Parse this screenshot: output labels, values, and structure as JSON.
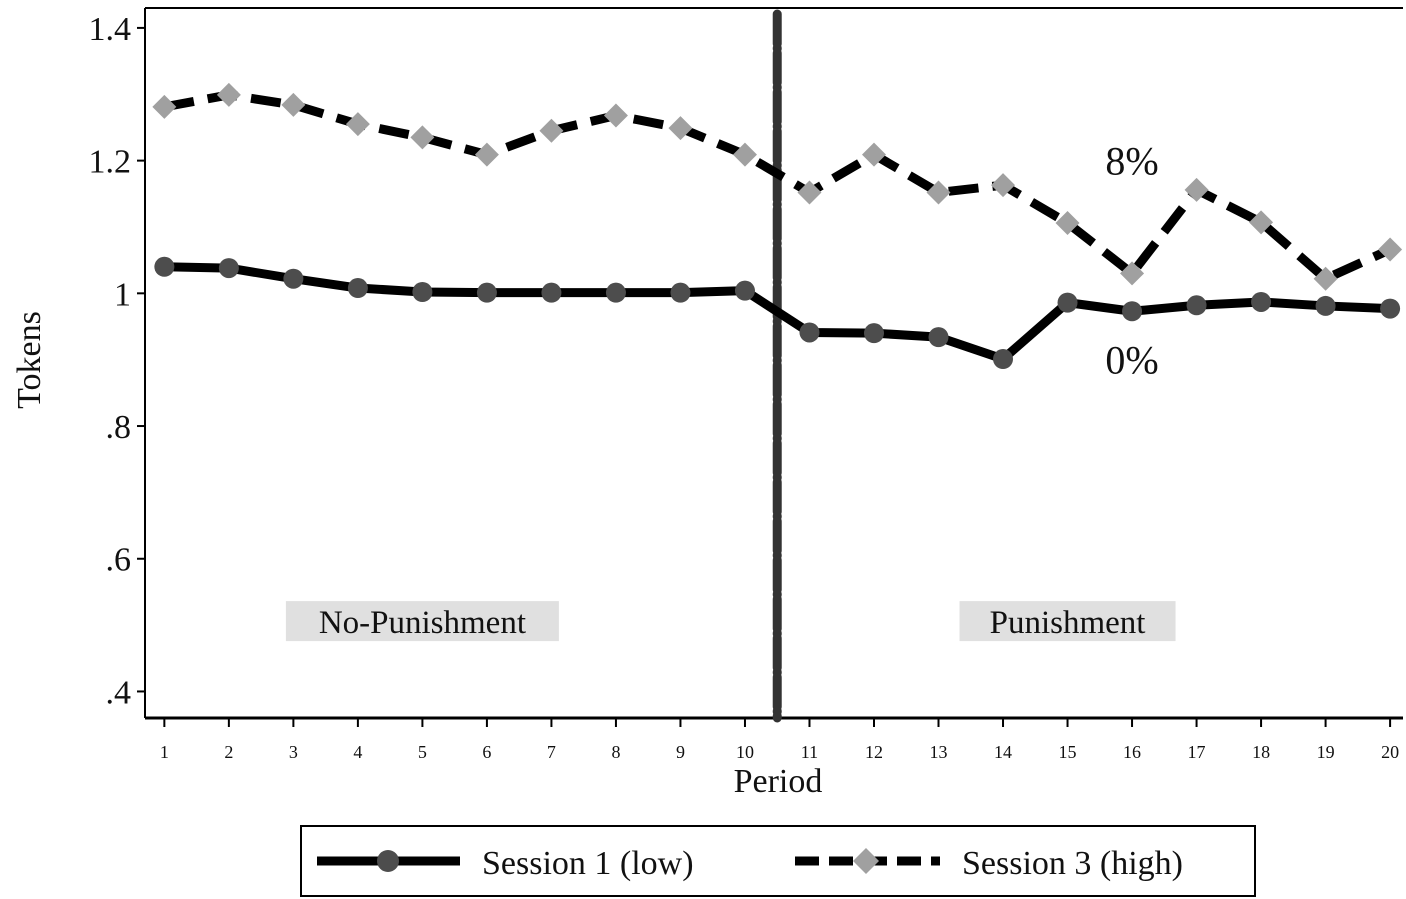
{
  "chart_data": {
    "type": "line",
    "title": "",
    "xlabel": "Period",
    "ylabel": "Tokens",
    "x": [
      1,
      2,
      3,
      4,
      5,
      6,
      7,
      8,
      9,
      10,
      11,
      12,
      13,
      14,
      15,
      16,
      17,
      18,
      19,
      20
    ],
    "x_tick_labels": [
      "1",
      "2",
      "3",
      "4",
      "5",
      "6",
      "7",
      "8",
      "9",
      "10",
      "11",
      "12",
      "13",
      "14",
      "15",
      "16",
      "17",
      "18",
      "19",
      "20"
    ],
    "xlim": [
      0.7,
      20.2
    ],
    "ylim": [
      0.36,
      1.43
    ],
    "y_ticks": [
      0.4,
      0.6,
      0.8,
      1.0,
      1.2,
      1.4
    ],
    "y_tick_labels": [
      ".4",
      ".6",
      ".8",
      "1",
      "1.2",
      "1.4"
    ],
    "grid": false,
    "vline_x": 10.5,
    "series": [
      {
        "name": "Session 1 (low)",
        "style": "solid",
        "marker": "circle",
        "line_color": "#000000",
        "marker_color": "#4d4d4d",
        "values": [
          1.04,
          1.038,
          1.022,
          1.008,
          1.002,
          1.001,
          1.001,
          1.001,
          1.001,
          1.004,
          0.941,
          0.94,
          0.934,
          0.901,
          0.986,
          0.973,
          0.982,
          0.987,
          0.981,
          0.977
        ]
      },
      {
        "name": "Session 3 (high)",
        "style": "dashed",
        "marker": "diamond",
        "line_color": "#000000",
        "marker_color": "#a0a0a0",
        "values": [
          1.281,
          1.299,
          1.284,
          1.255,
          1.235,
          1.209,
          1.245,
          1.268,
          1.249,
          1.209,
          1.152,
          1.209,
          1.152,
          1.163,
          1.106,
          1.03,
          1.156,
          1.107,
          1.022,
          1.066
        ]
      }
    ],
    "annotations": [
      {
        "text": "8%",
        "x": 16,
        "y": 1.2
      },
      {
        "text": "0%",
        "x": 16,
        "y": 0.9
      },
      {
        "text": "No-Punishment",
        "x": 5,
        "y": 0.5,
        "boxed": true
      },
      {
        "text": "Punishment",
        "x": 15,
        "y": 0.5,
        "boxed": true
      }
    ],
    "legend_position": "bottom"
  }
}
